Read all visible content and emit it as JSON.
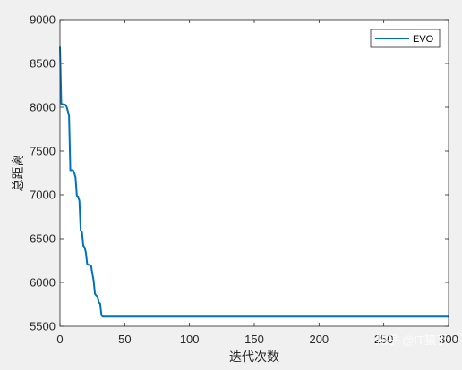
{
  "chart_data": {
    "type": "line",
    "title": "",
    "xlabel": "迭代次数",
    "ylabel": "总距离",
    "xlim": [
      0,
      300
    ],
    "ylim": [
      5500,
      9000
    ],
    "xticks": [
      0,
      50,
      100,
      150,
      200,
      250,
      300
    ],
    "yticks": [
      5500,
      6000,
      6500,
      7000,
      7500,
      8000,
      8500,
      9000
    ],
    "grid": false,
    "legend_position": "top-right",
    "series": [
      {
        "name": "EVO",
        "color": "#0072bd",
        "x": [
          0,
          1,
          2,
          3,
          4,
          5,
          6,
          7,
          8,
          9,
          10,
          11,
          12,
          13,
          14,
          15,
          16,
          17,
          18,
          19,
          20,
          21,
          22,
          23,
          24,
          25,
          26,
          27,
          28,
          29,
          30,
          31,
          32,
          33,
          34,
          35,
          300
        ],
        "y": [
          8690,
          8040,
          8035,
          8030,
          8030,
          8010,
          7960,
          7900,
          7280,
          7280,
          7280,
          7250,
          7200,
          6990,
          6980,
          6930,
          6590,
          6570,
          6420,
          6400,
          6340,
          6210,
          6200,
          6200,
          6190,
          6100,
          6020,
          5870,
          5850,
          5840,
          5770,
          5760,
          5630,
          5610,
          5610,
          5610,
          5610
        ]
      }
    ]
  },
  "watermark": "知乎 @IT猿手"
}
